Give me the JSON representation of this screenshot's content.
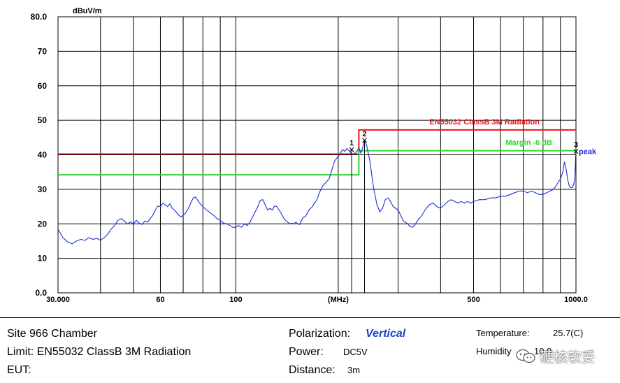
{
  "chart_data": {
    "type": "line",
    "yunit": "dBuV/m",
    "x_scale": "log",
    "xlim": [
      30,
      1000
    ],
    "ylim": [
      0,
      80
    ],
    "x_ticks": [
      {
        "value": 30,
        "label": "30.000"
      },
      {
        "value": 60,
        "label": "60"
      },
      {
        "value": 100,
        "label": "100"
      },
      {
        "value": 200,
        "label": "(MHz)"
      },
      {
        "value": 500,
        "label": "500"
      },
      {
        "value": 1000,
        "label": "1000.0"
      }
    ],
    "x_grid": [
      30,
      40,
      50,
      60,
      70,
      80,
      90,
      100,
      200,
      300,
      400,
      500,
      600,
      700,
      800,
      900,
      1000
    ],
    "y_ticks": [
      {
        "value": 0,
        "label": "0.0"
      },
      {
        "value": 10,
        "label": "10"
      },
      {
        "value": 20,
        "label": "20"
      },
      {
        "value": 30,
        "label": "30"
      },
      {
        "value": 40,
        "label": "40"
      },
      {
        "value": 50,
        "label": "50"
      },
      {
        "value": 60,
        "label": "60"
      },
      {
        "value": 70,
        "label": "70"
      },
      {
        "value": 80,
        "label": "80.0"
      }
    ],
    "grid": true,
    "limit_lines": [
      {
        "name": "EN55032 ClassB 3M Radiation",
        "color": "#e8141c",
        "points": [
          [
            30,
            40.2
          ],
          [
            230,
            40.2
          ],
          [
            230,
            47.2
          ],
          [
            1000,
            47.2
          ]
        ]
      },
      {
        "name": "Margin -6 dB",
        "color": "#33d433",
        "points": [
          [
            30,
            34.2
          ],
          [
            230,
            34.2
          ],
          [
            230,
            41.2
          ],
          [
            1000,
            41.2
          ]
        ]
      }
    ],
    "series": [
      {
        "color": "#1c2fd8",
        "points": [
          [
            30,
            18.5
          ],
          [
            31,
            16
          ],
          [
            32,
            14.8
          ],
          [
            33,
            14.2
          ],
          [
            34,
            15
          ],
          [
            35,
            15.5
          ],
          [
            36,
            15.2
          ],
          [
            37,
            16
          ],
          [
            38,
            15.5
          ],
          [
            39,
            15.8
          ],
          [
            40,
            15.2
          ],
          [
            41,
            16
          ],
          [
            42,
            17
          ],
          [
            43,
            18.5
          ],
          [
            44,
            19.5
          ],
          [
            45,
            21
          ],
          [
            46,
            21.5
          ],
          [
            47,
            20.8
          ],
          [
            48,
            20
          ],
          [
            49,
            20.5
          ],
          [
            50,
            20
          ],
          [
            51,
            21
          ],
          [
            52,
            20.2
          ],
          [
            53,
            19.8
          ],
          [
            54,
            20.8
          ],
          [
            55,
            20.5
          ],
          [
            56,
            21.5
          ],
          [
            57,
            22.5
          ],
          [
            58,
            24
          ],
          [
            59,
            25.2
          ],
          [
            60,
            25
          ],
          [
            61,
            26
          ],
          [
            62,
            25.5
          ],
          [
            63,
            25
          ],
          [
            64,
            25.8
          ],
          [
            65,
            24.5
          ],
          [
            66,
            24
          ],
          [
            67,
            23.2
          ],
          [
            68,
            22.5
          ],
          [
            69,
            22
          ],
          [
            70,
            22.5
          ],
          [
            71,
            23
          ],
          [
            72,
            24
          ],
          [
            73,
            25
          ],
          [
            74,
            26.5
          ],
          [
            75,
            27.5
          ],
          [
            76,
            27.8
          ],
          [
            77,
            27
          ],
          [
            78,
            26.2
          ],
          [
            79,
            25.5
          ],
          [
            80,
            25
          ],
          [
            82,
            24
          ],
          [
            84,
            23.2
          ],
          [
            86,
            22.5
          ],
          [
            88,
            21.5
          ],
          [
            90,
            21
          ],
          [
            92,
            20.2
          ],
          [
            94,
            20
          ],
          [
            96,
            19.5
          ],
          [
            98,
            19
          ],
          [
            100,
            19
          ],
          [
            102,
            19.5
          ],
          [
            104,
            19
          ],
          [
            106,
            20
          ],
          [
            108,
            19.5
          ],
          [
            110,
            20.5
          ],
          [
            112,
            22
          ],
          [
            114,
            23.5
          ],
          [
            116,
            25
          ],
          [
            118,
            26.8
          ],
          [
            120,
            27
          ],
          [
            122,
            25.5
          ],
          [
            124,
            24
          ],
          [
            126,
            24.5
          ],
          [
            128,
            24
          ],
          [
            130,
            25.2
          ],
          [
            132,
            25
          ],
          [
            134,
            24
          ],
          [
            136,
            23
          ],
          [
            138,
            21.8
          ],
          [
            140,
            21
          ],
          [
            142,
            20.5
          ],
          [
            144,
            20
          ],
          [
            146,
            20.2
          ],
          [
            148,
            20
          ],
          [
            150,
            20.5
          ],
          [
            152,
            20
          ],
          [
            154,
            19.8
          ],
          [
            156,
            21
          ],
          [
            158,
            22
          ],
          [
            160,
            22
          ],
          [
            162,
            23
          ],
          [
            164,
            24
          ],
          [
            166,
            24.5
          ],
          [
            168,
            25
          ],
          [
            170,
            26
          ],
          [
            172,
            26.5
          ],
          [
            174,
            27.5
          ],
          [
            176,
            29
          ],
          [
            178,
            30
          ],
          [
            180,
            31
          ],
          [
            182,
            31.5
          ],
          [
            184,
            32
          ],
          [
            186,
            32.5
          ],
          [
            188,
            33
          ],
          [
            190,
            34.5
          ],
          [
            192,
            36
          ],
          [
            194,
            37.5
          ],
          [
            196,
            38.5
          ],
          [
            198,
            39
          ],
          [
            200,
            39.5
          ],
          [
            203,
            40.5
          ],
          [
            206,
            41.5
          ],
          [
            209,
            41
          ],
          [
            212,
            41.8
          ],
          [
            215,
            41.2
          ],
          [
            218,
            40.5
          ],
          [
            221,
            40
          ],
          [
            224,
            40.5
          ],
          [
            227,
            41
          ],
          [
            230,
            42
          ],
          [
            233,
            40.5
          ],
          [
            236,
            42
          ],
          [
            239,
            44.2
          ],
          [
            242,
            43
          ],
          [
            245,
            40.5
          ],
          [
            248,
            38
          ],
          [
            251,
            34
          ],
          [
            254,
            30.5
          ],
          [
            257,
            28
          ],
          [
            260,
            25.5
          ],
          [
            265,
            23.5
          ],
          [
            270,
            24.5
          ],
          [
            275,
            27
          ],
          [
            280,
            27.5
          ],
          [
            285,
            26.5
          ],
          [
            290,
            25
          ],
          [
            295,
            24.5
          ],
          [
            300,
            24
          ],
          [
            305,
            22.5
          ],
          [
            310,
            21
          ],
          [
            315,
            20.5
          ],
          [
            320,
            20
          ],
          [
            325,
            19.2
          ],
          [
            330,
            19
          ],
          [
            335,
            19.5
          ],
          [
            340,
            20.5
          ],
          [
            345,
            21.5
          ],
          [
            350,
            22
          ],
          [
            355,
            23
          ],
          [
            360,
            24
          ],
          [
            370,
            25.5
          ],
          [
            380,
            26
          ],
          [
            390,
            25
          ],
          [
            400,
            24.5
          ],
          [
            410,
            25.5
          ],
          [
            420,
            26.5
          ],
          [
            430,
            27
          ],
          [
            440,
            26.5
          ],
          [
            450,
            26
          ],
          [
            460,
            26.5
          ],
          [
            470,
            26
          ],
          [
            480,
            26.5
          ],
          [
            490,
            26
          ],
          [
            500,
            26.5
          ],
          [
            520,
            27
          ],
          [
            540,
            27
          ],
          [
            560,
            27.5
          ],
          [
            580,
            27.5
          ],
          [
            600,
            28
          ],
          [
            620,
            28
          ],
          [
            640,
            28.5
          ],
          [
            660,
            29
          ],
          [
            680,
            29.5
          ],
          [
            700,
            29.5
          ],
          [
            720,
            29
          ],
          [
            740,
            29.5
          ],
          [
            760,
            29
          ],
          [
            780,
            28.5
          ],
          [
            800,
            28.5
          ],
          [
            820,
            29
          ],
          [
            840,
            29.5
          ],
          [
            860,
            30
          ],
          [
            880,
            31.5
          ],
          [
            900,
            33
          ],
          [
            915,
            35
          ],
          [
            925,
            38
          ],
          [
            935,
            36
          ],
          [
            945,
            33
          ],
          [
            955,
            31
          ],
          [
            965,
            30.5
          ],
          [
            975,
            30.5
          ],
          [
            985,
            31.5
          ],
          [
            992,
            33
          ],
          [
            1000,
            41
          ]
        ]
      }
    ],
    "markers": [
      {
        "label": "1",
        "x": 219,
        "y": 41.5
      },
      {
        "label": "2",
        "x": 239,
        "y": 44.2
      },
      {
        "label": "3",
        "x": 1000,
        "y": 41
      }
    ],
    "annotations": [
      {
        "text": "peak",
        "x": 1000,
        "y": 41
      }
    ]
  },
  "info": {
    "site": "Site  966 Chamber",
    "limit": "Limit:  EN55032 ClassB 3M Radiation",
    "eut": "EUT:",
    "pol_label": "Polarization:",
    "pol_value": "Vertical",
    "power_label": "Power:",
    "power_value": "DC5V",
    "distance_label": "Distance:",
    "distance_value": "3m",
    "temp_label": "Temperature:",
    "temp_value": "25.7(C)",
    "hum_label": "Humidity",
    "hum_value": "10.0"
  },
  "watermark": {
    "text": "硬核软妥",
    "icon": "wechat-icon"
  }
}
